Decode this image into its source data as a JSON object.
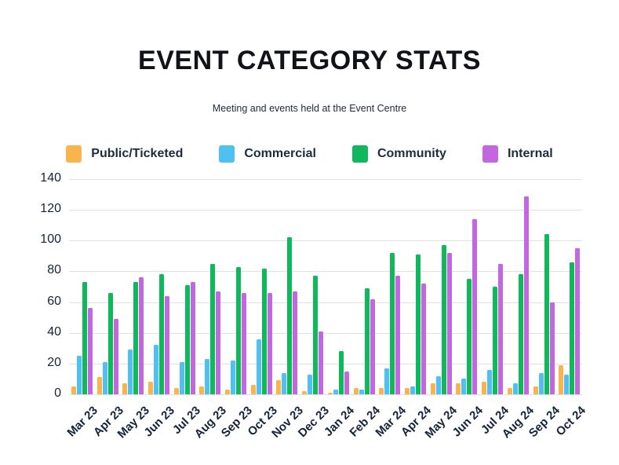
{
  "header": {
    "title": "EVENT CATEGORY STATS",
    "subtitle": "Meeting and events held at the Event Centre"
  },
  "colors": {
    "background": "#ffffff",
    "gridline": "#e0e0e0",
    "title_text": "#111318",
    "axis_text": "#14243a"
  },
  "chart_data": {
    "type": "bar",
    "title": "EVENT CATEGORY STATS",
    "subtitle": "Meeting and events held at the Event Centre",
    "categories": [
      "Mar 23",
      "Apr 23",
      "May 23",
      "Jun 23",
      "Jul 23",
      "Aug 23",
      "Sep 23",
      "Oct 23",
      "Nov 23",
      "Dec 23",
      "Jan 24",
      "Feb 24",
      "Mar 24",
      "Apr 24",
      "May 24",
      "Jun 24",
      "Jul 24",
      "Aug 24",
      "Sep 24",
      "Oct 24"
    ],
    "series": [
      {
        "name": "Public/Ticketed",
        "color": "#F9B44D",
        "values": [
          5,
          11,
          7,
          8,
          4,
          5,
          3,
          6,
          9,
          2,
          1,
          4,
          4,
          4,
          7,
          7,
          8,
          4,
          5,
          19
        ]
      },
      {
        "name": "Commercial",
        "color": "#4EC1F2",
        "values": [
          25,
          21,
          29,
          32,
          21,
          23,
          22,
          36,
          14,
          13,
          3,
          3,
          17,
          5,
          12,
          10,
          16,
          7,
          14,
          13
        ]
      },
      {
        "name": "Community",
        "color": "#10B85C",
        "values": [
          73,
          66,
          73,
          78,
          71,
          85,
          83,
          82,
          102,
          77,
          28,
          69,
          92,
          91,
          97,
          75,
          70,
          78,
          104,
          86
        ]
      },
      {
        "name": "Internal",
        "color": "#C367E0",
        "values": [
          56,
          49,
          76,
          64,
          73,
          67,
          66,
          66,
          67,
          41,
          15,
          62,
          77,
          72,
          92,
          114,
          85,
          129,
          60,
          95
        ]
      }
    ],
    "xlabel": "",
    "ylabel": "",
    "ylim": [
      0,
      140
    ],
    "yticks": [
      0,
      20,
      40,
      60,
      80,
      100,
      120,
      140
    ],
    "grid": "horizontal",
    "legend_position": "top"
  }
}
